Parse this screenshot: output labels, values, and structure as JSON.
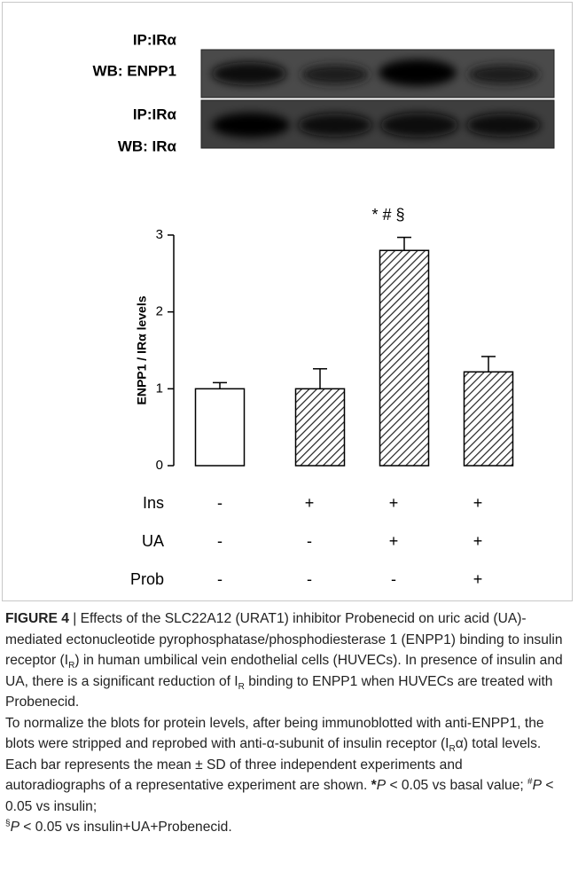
{
  "blot": {
    "labels": [
      "IP:IRα",
      "WB: ENPP1",
      "IP:IRα",
      "WB: IRα"
    ]
  },
  "chart_data": {
    "type": "bar",
    "y_label": "ENPP1 / IRα levels",
    "annotation": "* # §",
    "values": [
      1.0,
      1.0,
      2.8,
      1.22
    ],
    "errors": [
      0.08,
      0.26,
      0.17,
      0.2
    ],
    "hatched": [
      false,
      true,
      true,
      true
    ],
    "ylim": [
      0,
      3
    ],
    "yticks": [
      0,
      1,
      2,
      3
    ],
    "treatments": [
      {
        "label": "Ins",
        "values": [
          "-",
          "+",
          "+",
          "+"
        ]
      },
      {
        "label": "UA",
        "values": [
          "-",
          "-",
          "+",
          "+"
        ]
      },
      {
        "label": "Prob",
        "values": [
          "-",
          "-",
          "-",
          "+"
        ]
      }
    ]
  },
  "caption": {
    "parts": [
      "FIGURE 4",
      " | Effects of the SLC22A12 (URAT1) inhibitor Probenecid on uric acid (UA)-mediated ectonucleotide pyrophosphatase/phosphodiesterase 1 (ENPP1) binding to insulin receptor (I",
      "R",
      ") in human umbilical vein endothelial cells (HUVECs). In presence of insulin and UA, there is a significant reduction of I",
      "R",
      " binding to ENPP1 when HUVECs are treated with Probenecid.",
      "To normalize the blots for protein levels, after being immunoblotted with anti-ENPP1, the blots were stripped and reprobed with anti-α-subunit of insulin receptor (I",
      "R",
      "α) total levels. Each bar represents the mean ± SD of three independent experiments and autoradiographs of a representative experiment are shown. ",
      "*",
      "P",
      " < 0.05 vs basal value; ",
      "#",
      "P",
      " < 0.05 vs insulin;",
      "§",
      "P",
      " < 0.05 vs insulin+UA+Probenecid."
    ]
  }
}
